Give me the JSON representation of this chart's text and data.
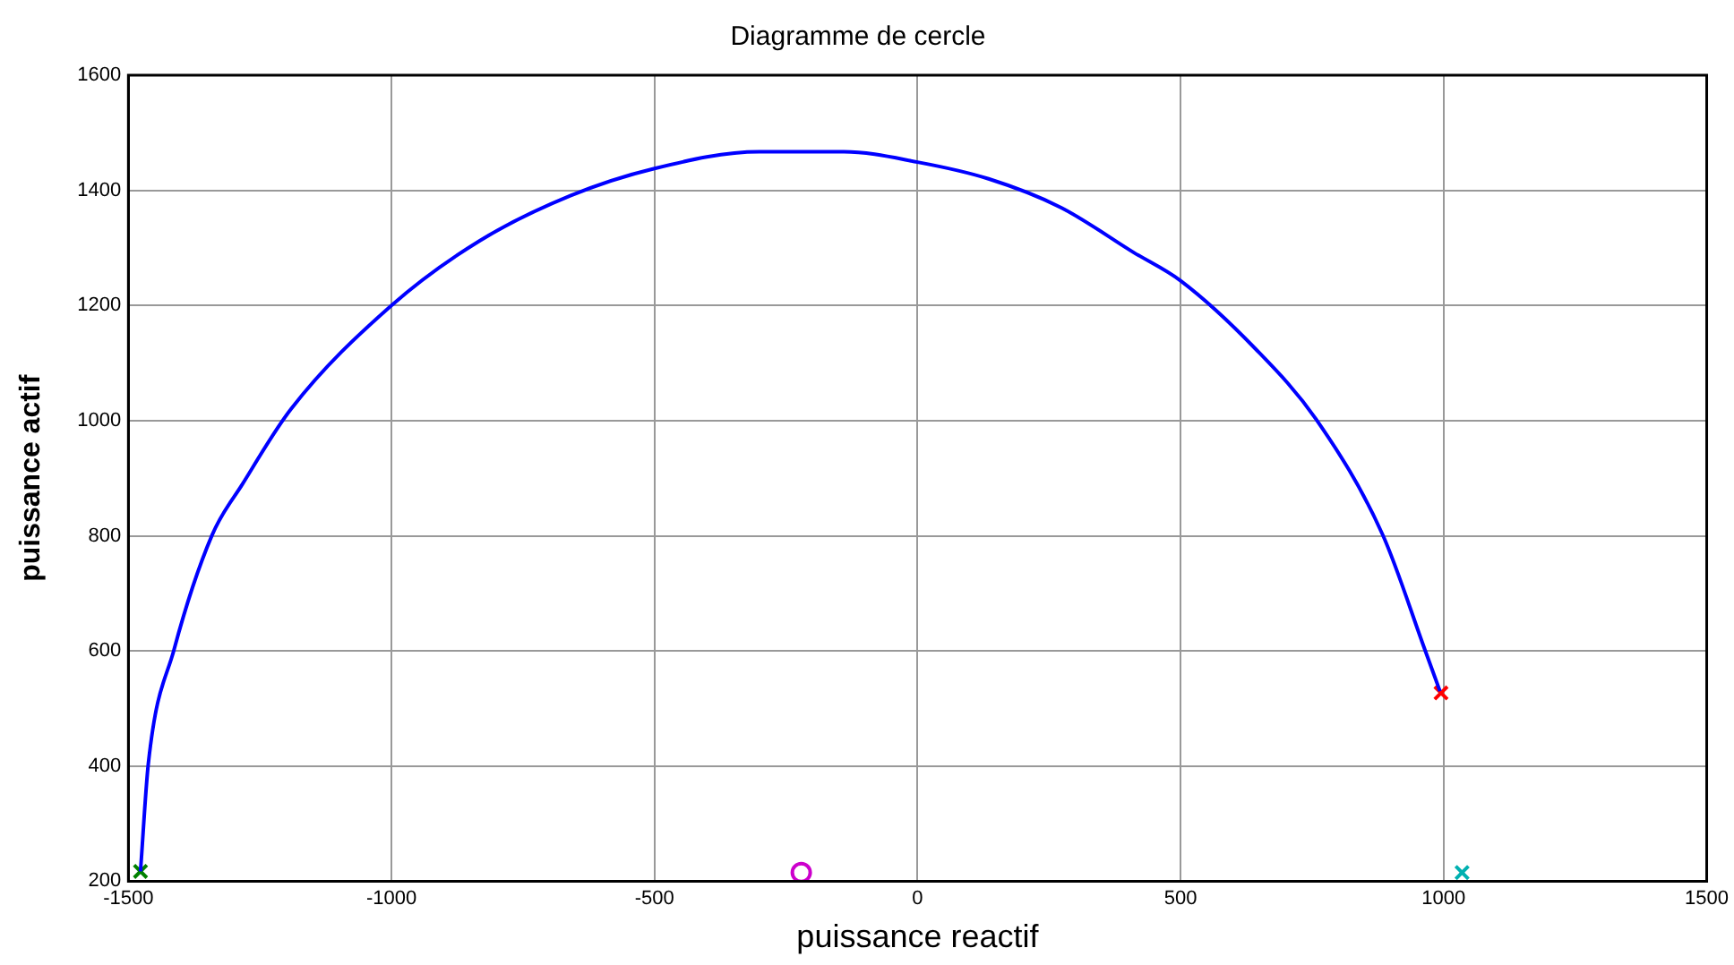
{
  "chart_data": {
    "type": "line",
    "title": "Diagramme de cercle",
    "xlabel": "puissance reactif",
    "ylabel": "puissance actif",
    "xlim": [
      -1500,
      1500
    ],
    "xticks": [
      -1500,
      -1000,
      -500,
      0,
      500,
      1000,
      1500
    ],
    "ylim": [
      200,
      1600
    ],
    "yticks": [
      200,
      400,
      600,
      800,
      1000,
      1200,
      1400,
      1600
    ],
    "grid": true,
    "legend": false,
    "series": [
      {
        "color": "#0000ff",
        "marker": "none",
        "line_style": "solid",
        "x": [
          -1477,
          -1462,
          -1413,
          -1341,
          -1283,
          -1191,
          -1000,
          -833,
          -659,
          -500,
          -301,
          -140,
          0,
          135,
          273,
          411,
          500,
          642,
          757,
          884,
          964,
          993
        ],
        "values": [
          217,
          405,
          603,
          801,
          890,
          1020,
          1200,
          1312,
          1391,
          1438,
          1467,
          1467,
          1449,
          1420,
          1370,
          1292,
          1243,
          1125,
          1003,
          802,
          603,
          530
        ]
      },
      {
        "type": "scatter",
        "color": "#008000",
        "marker": "cross",
        "x": [
          -1477
        ],
        "values": [
          217
        ]
      },
      {
        "type": "scatter",
        "color": "#cc00cc",
        "marker": "circle",
        "x": [
          -221
        ],
        "values": [
          215
        ]
      },
      {
        "type": "scatter",
        "color": "#ff0000",
        "marker": "cross",
        "x": [
          995
        ],
        "values": [
          527
        ]
      },
      {
        "type": "scatter",
        "color": "#00b0b0",
        "marker": "cross",
        "x": [
          1035
        ],
        "values": [
          215
        ]
      }
    ]
  }
}
